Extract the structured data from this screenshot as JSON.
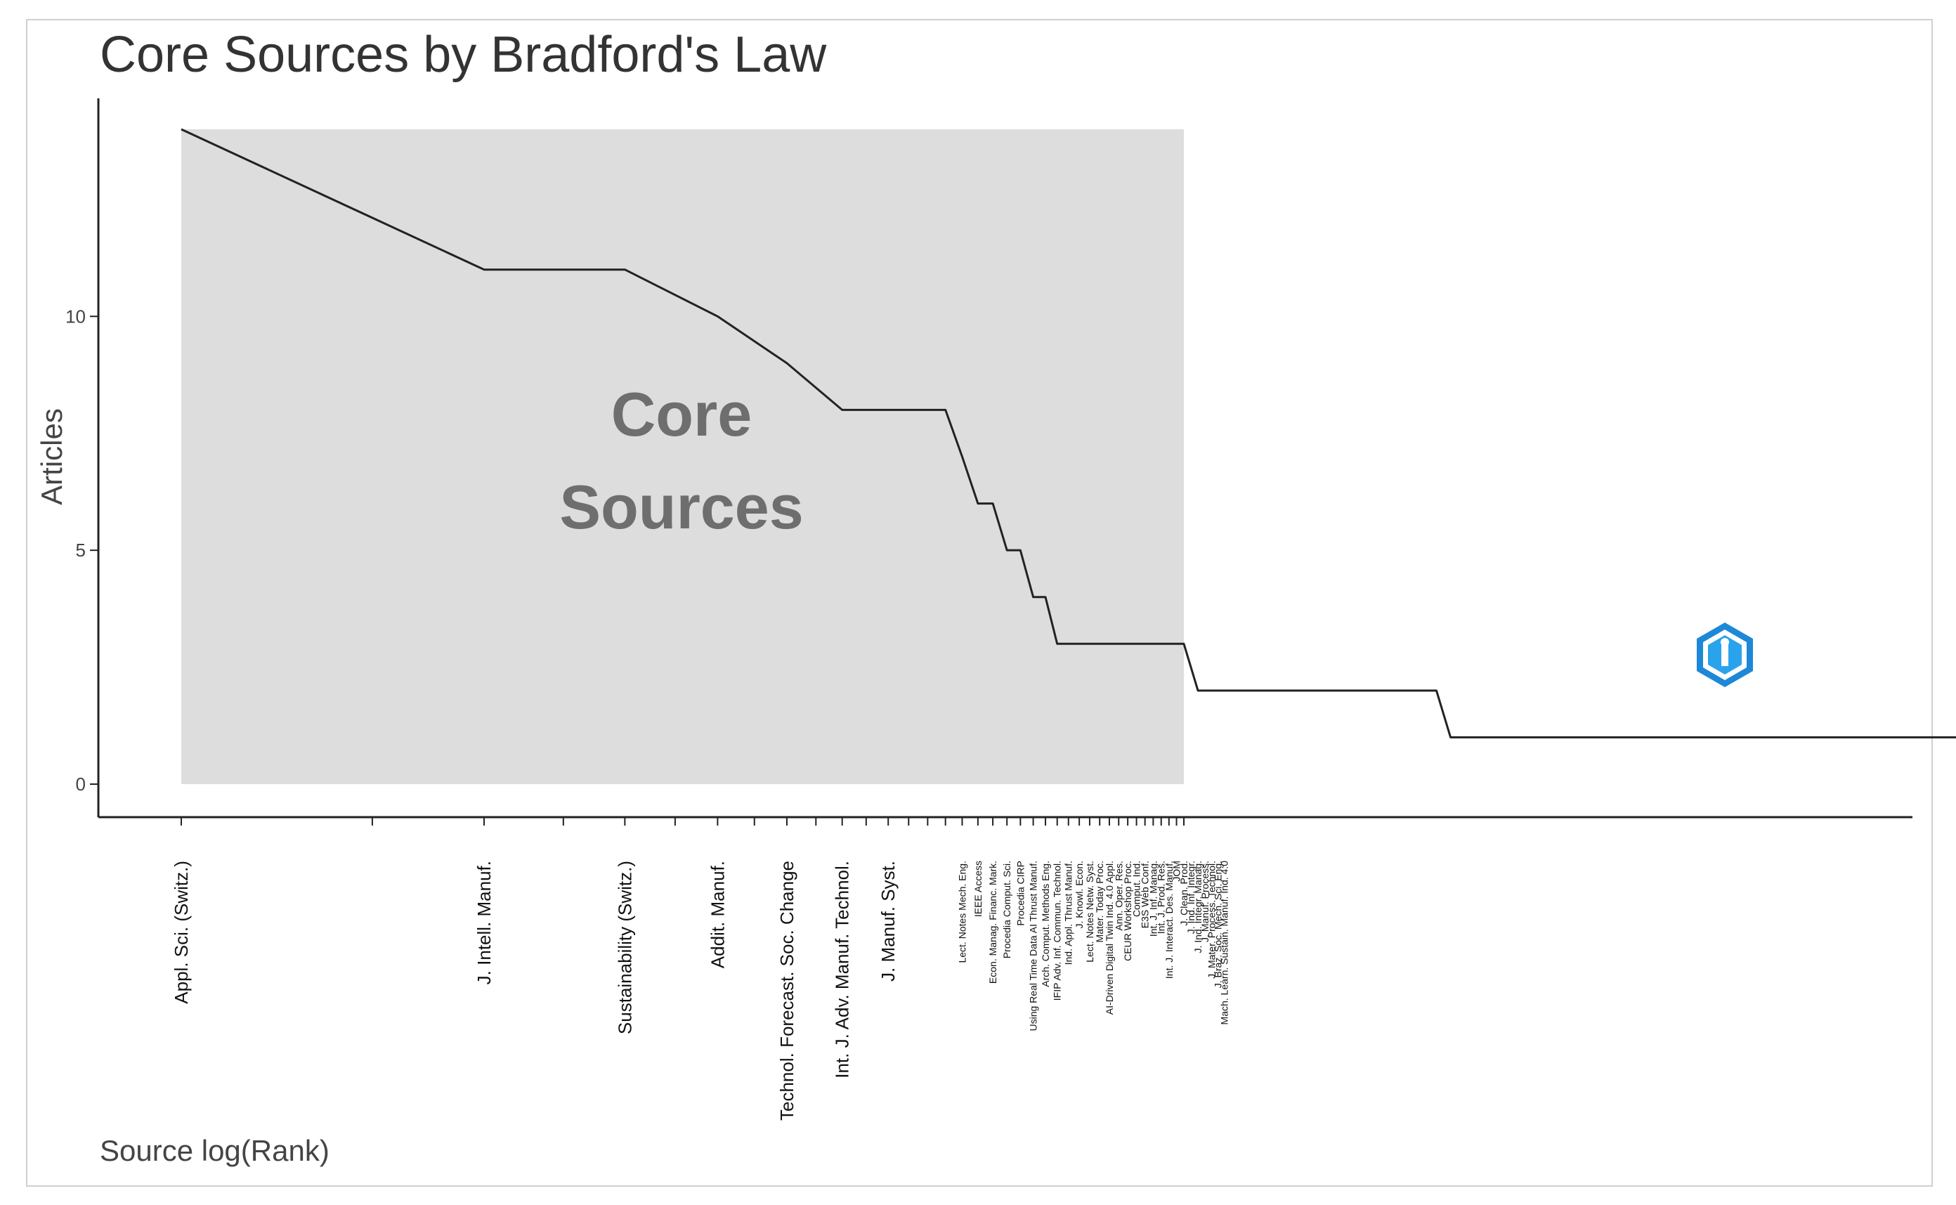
{
  "chart_data": {
    "type": "line",
    "title": "Core Sources by Bradford's Law",
    "xlabel": "Source log(Rank)",
    "ylabel": "Articles",
    "x_scale": "log",
    "ylim": [
      0,
      14
    ],
    "yticks": [
      0,
      5,
      10
    ],
    "grid": false,
    "core_zone": {
      "label_lines": [
        "Core",
        "Sources"
      ],
      "color": "#dddddd",
      "rank_range": [
        1,
        38
      ]
    },
    "line_color": "#222222",
    "labels": [
      "Appl. Sci. (Switz.)",
      "J. Intell. Manuf.",
      "Sustainability (Switz.)",
      "Addit. Manuf.",
      "Technol. Forecast. Soc. Change",
      "Int. J. Adv. Manuf. Technol.",
      "J. Manuf. Syst.",
      "Lect. Notes Mech. Eng.",
      "IEEE Access",
      "Econ. Manag. Financ. Mark.",
      "Procedia Comput. Sci.",
      "Procedia CIRP",
      "Using Real Time Data AI Thrust Manuf.",
      "Arch. Comput. Methods Eng.",
      "IFIP Adv. Inf. Commun. Technol.",
      "Ind. Appl. Thrust Manuf.",
      "J. Knowl. Econ.",
      "Lect. Notes Netw. Syst.",
      "Mater. Today Proc.",
      "AI-Driven Digital Twin Ind. 4.0 Appl.",
      "Ann. Oper. Res.",
      "CEUR Workshop Proc.",
      "Comput. Ind.",
      "E3S Web Conf.",
      "Int. J. Inf. Manag.",
      "Int. J. Prod. Res.",
      "Int. J. Interact. Des. Manuf.",
      "JOM",
      "J. Clean. Prod.",
      "J. Ind. Inf. Integr.",
      "J. Ind. Integr. Manag.",
      "J. Manuf. Process.",
      "J. Mater. Process. Technol.",
      "J. Braz. Soc. Mech. Sci. Eng.",
      "Mach. Learn. Sustain. Manuf. Ind. 4.0"
    ],
    "series": [
      {
        "rank": [
          1,
          3,
          5,
          7,
          9,
          11,
          13,
          16,
          17,
          18,
          19,
          20,
          21,
          22,
          23,
          24,
          38,
          40,
          95,
          100,
          650
        ],
        "articles": [
          14,
          11,
          11,
          10,
          9,
          8,
          8,
          8,
          7,
          6,
          6,
          5,
          5,
          4,
          4,
          3,
          3,
          2,
          2,
          1,
          1
        ]
      }
    ]
  }
}
